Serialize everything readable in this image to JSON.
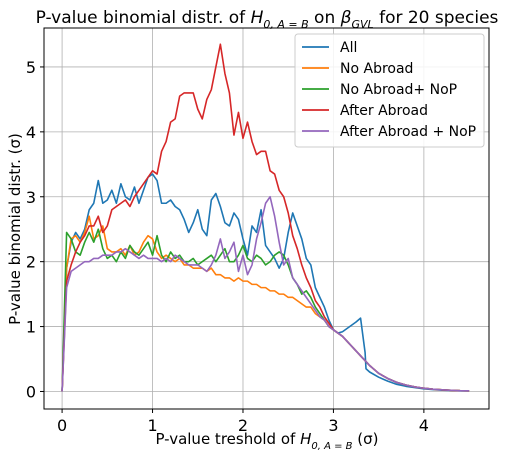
{
  "chart_data": {
    "type": "line",
    "title": {
      "pre": "P-value binomial distr. of ",
      "sym1": "H",
      "sub1": "0, A = B",
      "mid": " on ",
      "sym2": "β",
      "sub2": "GVL",
      "post": " for 20 species"
    },
    "xlabel": {
      "pre": "P-value treshold of ",
      "sym": "H",
      "sub": "0, A = B",
      "post": " (σ)"
    },
    "ylabel": "P-value binomial distr. (σ)",
    "xlim": [
      -0.2,
      4.72
    ],
    "ylim": [
      -0.27,
      5.6
    ],
    "xticks": [
      0,
      1,
      2,
      3,
      4
    ],
    "yticks": [
      0,
      1,
      2,
      3,
      4,
      5
    ],
    "grid": true,
    "legend_position": "top-right",
    "series": [
      {
        "name": "All",
        "color": "#1f77b4",
        "x": [
          0,
          0.05,
          0.1,
          0.15,
          0.2,
          0.25,
          0.3,
          0.35,
          0.4,
          0.45,
          0.5,
          0.55,
          0.6,
          0.65,
          0.7,
          0.75,
          0.8,
          0.85,
          0.9,
          0.95,
          1.0,
          1.05,
          1.1,
          1.15,
          1.2,
          1.25,
          1.3,
          1.35,
          1.4,
          1.45,
          1.5,
          1.55,
          1.6,
          1.65,
          1.7,
          1.75,
          1.8,
          1.85,
          1.9,
          1.95,
          2.0,
          2.05,
          2.1,
          2.15,
          2.2,
          2.25,
          2.3,
          2.35,
          2.4,
          2.45,
          2.5,
          2.55,
          2.6,
          2.65,
          2.7,
          2.75,
          2.8,
          2.85,
          2.9,
          2.95,
          3.0,
          3.05,
          3.1,
          3.15,
          3.2,
          3.25,
          3.3,
          3.35,
          3.36,
          3.4,
          3.5,
          3.6,
          3.7,
          3.8,
          3.9,
          4.0,
          4.1,
          4.2,
          4.3,
          4.4,
          4.5
        ],
        "y": [
          0.0,
          1.9,
          2.3,
          2.45,
          2.35,
          2.5,
          2.8,
          2.9,
          3.25,
          2.9,
          2.95,
          3.1,
          2.9,
          3.2,
          3.0,
          2.95,
          3.15,
          2.9,
          3.1,
          3.3,
          3.35,
          3.25,
          2.9,
          2.9,
          2.95,
          2.85,
          2.8,
          2.65,
          2.45,
          2.6,
          2.8,
          2.5,
          2.4,
          2.95,
          3.05,
          2.85,
          2.6,
          2.55,
          2.75,
          2.65,
          2.35,
          2.1,
          2.55,
          2.45,
          2.8,
          2.25,
          2.15,
          2.05,
          1.9,
          2.05,
          2.45,
          2.75,
          2.55,
          2.35,
          2.05,
          1.95,
          1.6,
          1.45,
          1.3,
          1.1,
          0.95,
          0.9,
          0.92,
          0.97,
          1.02,
          1.07,
          1.13,
          0.6,
          0.35,
          0.3,
          0.22,
          0.16,
          0.11,
          0.08,
          0.06,
          0.04,
          0.03,
          0.02,
          0.015,
          0.01,
          0.01
        ]
      },
      {
        "name": "No Abroad",
        "color": "#ff7f0e",
        "x": [
          0,
          0.05,
          0.1,
          0.15,
          0.2,
          0.25,
          0.3,
          0.35,
          0.4,
          0.45,
          0.5,
          0.55,
          0.6,
          0.65,
          0.7,
          0.75,
          0.8,
          0.85,
          0.9,
          0.95,
          1.0,
          1.05,
          1.1,
          1.15,
          1.2,
          1.25,
          1.3,
          1.35,
          1.4,
          1.45,
          1.5,
          1.55,
          1.6,
          1.65,
          1.7,
          1.75,
          1.8,
          1.85,
          1.9,
          1.95,
          2.0,
          2.05,
          2.1,
          2.15,
          2.2,
          2.25,
          2.3,
          2.35,
          2.4,
          2.45,
          2.5,
          2.55,
          2.6,
          2.65,
          2.7,
          2.75,
          2.8,
          2.85,
          2.9,
          2.95,
          3.0,
          3.05,
          3.1,
          3.2,
          3.3,
          3.4,
          3.5,
          3.6,
          3.7,
          3.8,
          3.9,
          4.0,
          4.1,
          4.2,
          4.3,
          4.4,
          4.5
        ],
        "y": [
          0.0,
          1.9,
          2.35,
          2.4,
          2.3,
          2.45,
          2.7,
          2.35,
          2.4,
          2.55,
          2.2,
          2.15,
          2.15,
          2.2,
          2.1,
          2.25,
          2.1,
          2.15,
          2.3,
          2.4,
          2.35,
          2.15,
          2.05,
          2.1,
          2.05,
          2.0,
          2.05,
          1.95,
          1.95,
          1.9,
          1.9,
          1.9,
          1.85,
          1.9,
          1.8,
          1.8,
          1.75,
          1.75,
          1.7,
          1.75,
          1.7,
          1.7,
          1.65,
          1.65,
          1.6,
          1.6,
          1.55,
          1.55,
          1.5,
          1.5,
          1.45,
          1.45,
          1.4,
          1.35,
          1.3,
          1.3,
          1.2,
          1.15,
          1.1,
          1.0,
          0.95,
          0.9,
          0.85,
          0.7,
          0.55,
          0.4,
          0.28,
          0.2,
          0.14,
          0.1,
          0.07,
          0.05,
          0.035,
          0.025,
          0.018,
          0.012,
          0.01
        ]
      },
      {
        "name": "No Abroad+ NoP",
        "color": "#2ca02c",
        "x": [
          0,
          0.05,
          0.1,
          0.15,
          0.2,
          0.25,
          0.3,
          0.35,
          0.4,
          0.45,
          0.5,
          0.55,
          0.6,
          0.65,
          0.7,
          0.75,
          0.8,
          0.85,
          0.9,
          0.95,
          1.0,
          1.05,
          1.1,
          1.15,
          1.2,
          1.25,
          1.3,
          1.35,
          1.4,
          1.45,
          1.5,
          1.55,
          1.6,
          1.65,
          1.7,
          1.75,
          1.8,
          1.85,
          1.9,
          1.95,
          2.0,
          2.05,
          2.1,
          2.15,
          2.2,
          2.25,
          2.3,
          2.35,
          2.4,
          2.45,
          2.5,
          2.55,
          2.6,
          2.65,
          2.7,
          2.75,
          2.8,
          2.85,
          2.9,
          2.95,
          3.0,
          3.05,
          3.1,
          3.2,
          3.3,
          3.4,
          3.5,
          3.6,
          3.7,
          3.8,
          3.9,
          4.0,
          4.1,
          4.2,
          4.3,
          4.4,
          4.5
        ],
        "y": [
          0.0,
          2.45,
          2.35,
          2.15,
          2.1,
          2.3,
          2.45,
          2.3,
          2.5,
          2.2,
          2.05,
          2.1,
          2.0,
          2.15,
          2.05,
          2.25,
          2.15,
          2.1,
          2.2,
          2.3,
          2.1,
          2.4,
          2.1,
          2.0,
          2.15,
          2.05,
          2.1,
          2.0,
          2.0,
          2.05,
          1.95,
          2.0,
          2.05,
          2.1,
          2.0,
          2.1,
          2.2,
          2.0,
          2.0,
          2.1,
          2.25,
          2.05,
          2.0,
          2.1,
          2.05,
          1.95,
          2.0,
          2.1,
          2.15,
          2.1,
          1.95,
          1.75,
          1.65,
          1.5,
          1.55,
          1.45,
          1.3,
          1.2,
          1.1,
          1.0,
          0.95,
          0.9,
          0.85,
          0.7,
          0.55,
          0.4,
          0.28,
          0.2,
          0.14,
          0.1,
          0.07,
          0.05,
          0.035,
          0.025,
          0.018,
          0.012,
          0.01
        ]
      },
      {
        "name": "After Abroad",
        "color": "#d62728",
        "x": [
          0,
          0.05,
          0.1,
          0.15,
          0.2,
          0.25,
          0.3,
          0.35,
          0.4,
          0.45,
          0.5,
          0.55,
          0.6,
          0.65,
          0.7,
          0.75,
          0.8,
          0.85,
          0.9,
          0.95,
          1.0,
          1.05,
          1.1,
          1.15,
          1.2,
          1.25,
          1.3,
          1.35,
          1.4,
          1.45,
          1.5,
          1.55,
          1.6,
          1.65,
          1.7,
          1.75,
          1.8,
          1.85,
          1.9,
          1.95,
          2.0,
          2.05,
          2.1,
          2.15,
          2.2,
          2.25,
          2.3,
          2.35,
          2.4,
          2.45,
          2.5,
          2.55,
          2.6,
          2.65,
          2.7,
          2.75,
          2.8,
          2.85,
          2.9,
          2.95,
          3.0,
          3.05,
          3.1,
          3.2,
          3.3,
          3.4,
          3.5,
          3.6,
          3.7,
          3.8,
          3.9,
          4.0,
          4.1,
          4.2,
          4.3,
          4.4,
          4.5
        ],
        "y": [
          0.0,
          1.7,
          1.95,
          2.15,
          2.3,
          2.4,
          2.55,
          2.55,
          2.7,
          2.45,
          2.55,
          2.8,
          2.85,
          2.9,
          2.95,
          2.85,
          3.0,
          3.1,
          3.2,
          3.3,
          3.4,
          3.35,
          3.7,
          3.85,
          4.15,
          4.2,
          4.55,
          4.6,
          4.6,
          4.6,
          4.35,
          4.2,
          4.5,
          4.65,
          5.0,
          5.35,
          4.9,
          4.6,
          3.95,
          4.3,
          3.9,
          4.15,
          3.85,
          3.65,
          3.7,
          3.7,
          3.4,
          3.35,
          3.1,
          3.0,
          2.75,
          2.4,
          2.2,
          1.95,
          1.75,
          1.6,
          1.4,
          1.3,
          1.15,
          1.05,
          0.95,
          0.9,
          0.85,
          0.7,
          0.55,
          0.4,
          0.28,
          0.2,
          0.14,
          0.1,
          0.07,
          0.05,
          0.035,
          0.025,
          0.018,
          0.012,
          0.01
        ]
      },
      {
        "name": "After Abroad + NoP",
        "color": "#9467bd",
        "x": [
          0,
          0.05,
          0.1,
          0.15,
          0.2,
          0.25,
          0.3,
          0.35,
          0.4,
          0.45,
          0.5,
          0.55,
          0.6,
          0.65,
          0.7,
          0.75,
          0.8,
          0.85,
          0.9,
          0.95,
          1.0,
          1.05,
          1.1,
          1.15,
          1.2,
          1.25,
          1.3,
          1.35,
          1.4,
          1.45,
          1.5,
          1.55,
          1.6,
          1.65,
          1.7,
          1.75,
          1.8,
          1.85,
          1.9,
          1.95,
          2.0,
          2.05,
          2.1,
          2.15,
          2.2,
          2.25,
          2.3,
          2.35,
          2.4,
          2.45,
          2.5,
          2.55,
          2.6,
          2.65,
          2.7,
          2.75,
          2.8,
          2.85,
          2.9,
          2.95,
          3.0,
          3.05,
          3.1,
          3.2,
          3.3,
          3.4,
          3.5,
          3.6,
          3.7,
          3.8,
          3.9,
          4.0,
          4.1,
          4.2,
          4.3,
          4.4,
          4.5
        ],
        "y": [
          0.0,
          1.6,
          1.85,
          1.9,
          1.95,
          2.0,
          2.0,
          2.05,
          2.05,
          2.1,
          2.1,
          2.1,
          2.15,
          2.15,
          2.2,
          2.15,
          2.1,
          2.05,
          2.1,
          2.05,
          2.05,
          2.05,
          2.0,
          2.05,
          2.0,
          2.1,
          2.05,
          2.0,
          1.95,
          1.95,
          1.95,
          1.9,
          1.85,
          1.95,
          2.1,
          2.35,
          2.05,
          2.15,
          2.3,
          1.85,
          2.1,
          1.8,
          1.95,
          2.35,
          2.6,
          2.9,
          3.0,
          2.7,
          2.3,
          1.95,
          2.05,
          1.75,
          1.65,
          1.55,
          1.45,
          1.35,
          1.25,
          1.15,
          1.1,
          1.0,
          0.95,
          0.9,
          0.85,
          0.7,
          0.55,
          0.4,
          0.28,
          0.2,
          0.14,
          0.1,
          0.07,
          0.05,
          0.035,
          0.025,
          0.018,
          0.012,
          0.01
        ]
      }
    ]
  }
}
